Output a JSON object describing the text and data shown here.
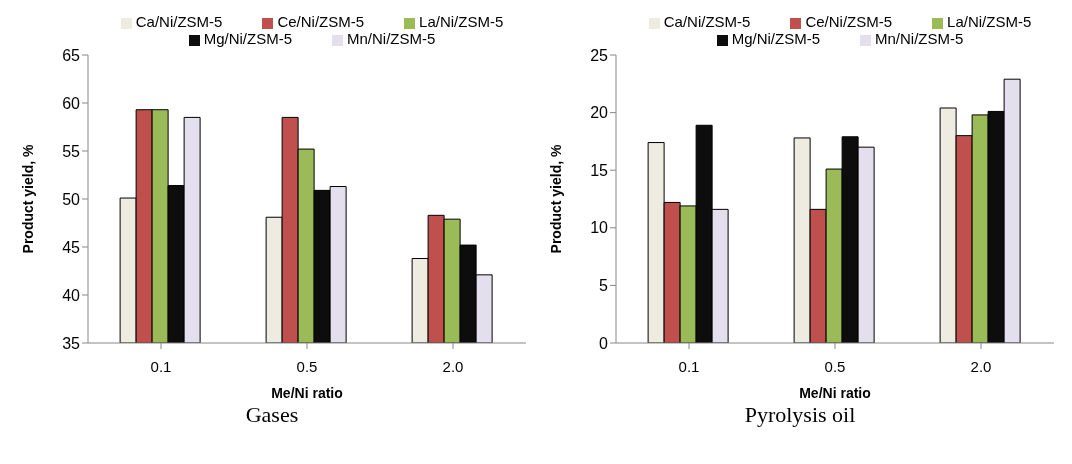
{
  "chart_data": [
    {
      "type": "bar",
      "title": "Gases",
      "xlabel": "Me/Ni ratio",
      "ylabel": "Product yield, %",
      "categories": [
        "0.1",
        "0.5",
        "2.0"
      ],
      "series": [
        {
          "name": "Ca/Ni/ZSM-5",
          "color": "#eeebe0",
          "values": [
            50.1,
            48.1,
            43.8
          ]
        },
        {
          "name": "Ce/Ni/ZSM-5",
          "color": "#c0504d",
          "values": [
            59.3,
            58.5,
            48.3
          ]
        },
        {
          "name": "La/Ni/ZSM-5",
          "color": "#9bbb59",
          "values": [
            59.3,
            55.2,
            47.9
          ]
        },
        {
          "name": "Mg/Ni/ZSM-5",
          "color": "#0d0d0d",
          "values": [
            51.4,
            50.9,
            45.2
          ]
        },
        {
          "name": "Mn/Ni/ZSM-5",
          "color": "#e4dfec",
          "values": [
            58.5,
            51.3,
            42.1
          ]
        }
      ],
      "ylim": [
        35,
        65
      ],
      "yticks": [
        35,
        40,
        45,
        50,
        55,
        60,
        65
      ],
      "grid": false,
      "legend": "top"
    },
    {
      "type": "bar",
      "title": "Pyrolysis oil",
      "xlabel": "Me/Ni ratio",
      "ylabel": "Product yield, %",
      "categories": [
        "0.1",
        "0.5",
        "2.0"
      ],
      "series": [
        {
          "name": "Ca/Ni/ZSM-5",
          "color": "#eeebe0",
          "values": [
            17.4,
            17.8,
            20.4
          ]
        },
        {
          "name": "Ce/Ni/ZSM-5",
          "color": "#c0504d",
          "values": [
            12.2,
            11.6,
            18.0
          ]
        },
        {
          "name": "La/Ni/ZSM-5",
          "color": "#9bbb59",
          "values": [
            11.9,
            15.1,
            19.8
          ]
        },
        {
          "name": "Mg/Ni/ZSM-5",
          "color": "#0d0d0d",
          "values": [
            18.9,
            17.9,
            20.1
          ]
        },
        {
          "name": "Mn/Ni/ZSM-5",
          "color": "#e4dfec",
          "values": [
            11.6,
            17.0,
            22.9
          ]
        }
      ],
      "ylim": [
        0,
        25
      ],
      "yticks": [
        0,
        5,
        10,
        15,
        20,
        25
      ],
      "grid": false,
      "legend": "top"
    }
  ]
}
